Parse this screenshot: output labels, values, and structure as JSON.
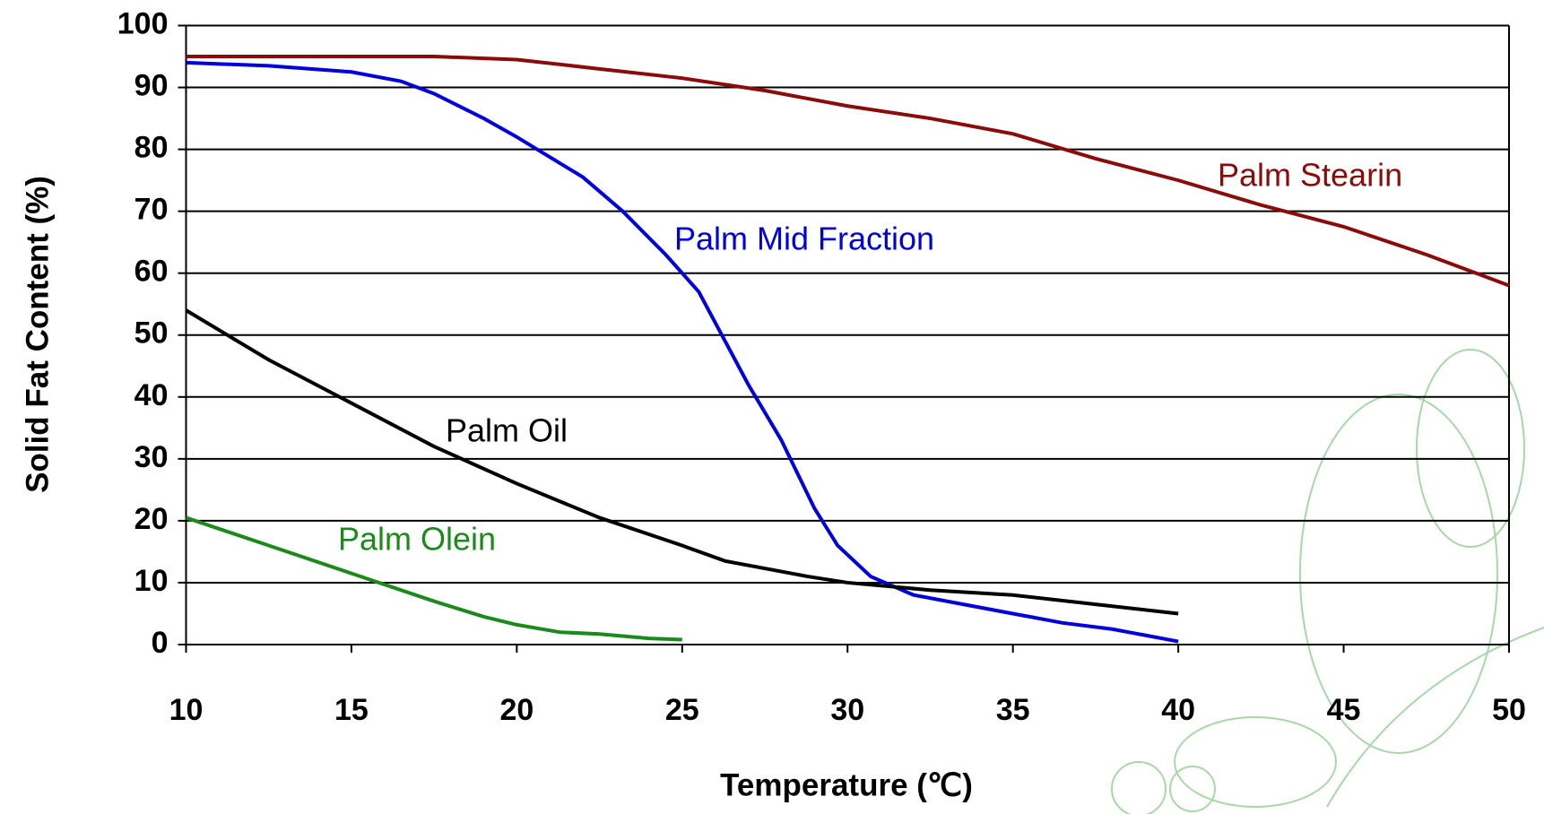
{
  "chart_data": {
    "type": "line",
    "xlabel": "Temperature (℃)",
    "ylabel": "Solid Fat Content (%)",
    "xlim": [
      10,
      50
    ],
    "ylim": [
      0,
      100
    ],
    "xticks": [
      10,
      15,
      20,
      25,
      30,
      35,
      40,
      45,
      50
    ],
    "yticks": [
      0,
      10,
      20,
      30,
      40,
      50,
      60,
      70,
      80,
      90,
      100
    ],
    "grid": true,
    "series": [
      {
        "name": "Palm Stearin",
        "color": "#8b0a0a",
        "x": [
          10,
          12.5,
          15,
          17.5,
          20,
          22.5,
          25,
          27.5,
          30,
          32.5,
          35,
          37.5,
          40,
          42.5,
          45,
          47.5,
          50
        ],
        "values": [
          95,
          95,
          95,
          95,
          94.5,
          93,
          91.5,
          89.5,
          87,
          85,
          82.5,
          78.5,
          75,
          71,
          67.5,
          63,
          58
        ]
      },
      {
        "name": "Palm Mid Fraction",
        "color": "#0000dd",
        "x": [
          10,
          12.5,
          15,
          16.5,
          17.5,
          19,
          20,
          22,
          23.2,
          24.5,
          25.5,
          26.3,
          27,
          28,
          29,
          29.7,
          30.7,
          32,
          33.5,
          35,
          36.5,
          38,
          39,
          40
        ],
        "values": [
          94,
          93.5,
          92.5,
          91,
          89,
          85,
          82,
          75.5,
          70,
          63,
          57,
          49,
          42,
          33,
          22,
          16,
          11,
          8,
          6.5,
          5,
          3.5,
          2.5,
          1.5,
          0.5
        ]
      },
      {
        "name": "Palm Oil",
        "color": "#000000",
        "x": [
          10,
          12.5,
          15,
          17.5,
          20,
          22.5,
          25,
          26.3,
          28.8,
          30,
          32.5,
          35,
          37.5,
          40
        ],
        "values": [
          54,
          46,
          39,
          32,
          26,
          20.5,
          16,
          13.5,
          11,
          10,
          8.8,
          8,
          6.5,
          5
        ]
      },
      {
        "name": "Palm Olein",
        "color": "#1a8a1a",
        "x": [
          10,
          12.5,
          15,
          17.5,
          19,
          20,
          21.3,
          22.5,
          24,
          25
        ],
        "values": [
          20.5,
          16,
          11.5,
          7,
          4.5,
          3.2,
          2,
          1.7,
          1,
          0.8
        ]
      }
    ]
  }
}
